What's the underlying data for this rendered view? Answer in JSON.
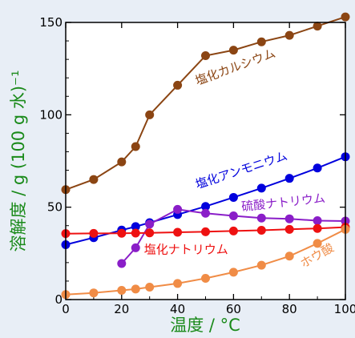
{
  "chart_data": {
    "type": "line",
    "xlabel": "温度 / °C",
    "ylabel": "溶解度 / g (100 g 水)⁻¹",
    "xlim": [
      0,
      100
    ],
    "ylim": [
      0,
      150
    ],
    "x_ticks": [
      0,
      20,
      40,
      60,
      80,
      100
    ],
    "y_ticks": [
      0,
      50,
      100,
      150
    ],
    "grid": false,
    "series": [
      {
        "name": "塩化カルシウム",
        "color": "#8b4513",
        "points": [
          [
            0,
            59.5
          ],
          [
            10,
            65
          ],
          [
            20,
            74.5
          ],
          [
            25,
            82.8
          ],
          [
            30,
            100
          ],
          [
            40,
            116
          ],
          [
            50,
            132
          ],
          [
            60,
            135
          ],
          [
            70,
            139.5
          ],
          [
            80,
            143
          ],
          [
            90,
            148
          ],
          [
            100,
            153
          ]
        ]
      },
      {
        "name": "塩化アンモニウム",
        "color": "#0000dd",
        "points": [
          [
            0,
            29.7
          ],
          [
            10,
            33.5
          ],
          [
            20,
            37.6
          ],
          [
            25,
            39.5
          ],
          [
            30,
            41.6
          ],
          [
            40,
            46
          ],
          [
            50,
            50.4
          ],
          [
            60,
            55.3
          ],
          [
            70,
            60.3
          ],
          [
            80,
            65.6
          ],
          [
            90,
            71.2
          ],
          [
            100,
            77.3
          ]
        ]
      },
      {
        "name": "硫酸ナトリウム",
        "color": "#8a1ec8",
        "points": [
          [
            20,
            19.5
          ],
          [
            25,
            28
          ],
          [
            30,
            40.8
          ],
          [
            40,
            48.8
          ],
          [
            50,
            46.7
          ],
          [
            60,
            45.3
          ],
          [
            70,
            44.1
          ],
          [
            80,
            43.7
          ],
          [
            90,
            42.7
          ],
          [
            100,
            42.5
          ]
        ]
      },
      {
        "name": "塩化ナトリウム",
        "color": "#ee1111",
        "points": [
          [
            0,
            35.7
          ],
          [
            10,
            35.8
          ],
          [
            20,
            35.9
          ],
          [
            25,
            36
          ],
          [
            30,
            36.1
          ],
          [
            40,
            36.4
          ],
          [
            50,
            36.7
          ],
          [
            60,
            37.1
          ],
          [
            70,
            37.5
          ],
          [
            80,
            38
          ],
          [
            90,
            38.5
          ],
          [
            100,
            39.2
          ]
        ]
      },
      {
        "name": "ホウ酸",
        "color": "#f08c46",
        "points": [
          [
            0,
            2.7
          ],
          [
            10,
            3.6
          ],
          [
            20,
            5
          ],
          [
            25,
            5.7
          ],
          [
            30,
            6.7
          ],
          [
            40,
            8.7
          ],
          [
            50,
            11.5
          ],
          [
            60,
            14.8
          ],
          [
            70,
            18.6
          ],
          [
            80,
            23.5
          ],
          [
            90,
            30.4
          ],
          [
            100,
            38
          ]
        ]
      }
    ],
    "series_labels": [
      {
        "series": 0,
        "text": "塩化カルシウム",
        "at": [
          47,
          116
        ],
        "angle": -20
      },
      {
        "series": 1,
        "text": "塩化アンモニウム",
        "at": [
          47,
          60
        ],
        "angle": -18
      },
      {
        "series": 2,
        "text": "硫酸ナトリウム",
        "at": [
          63,
          48
        ],
        "angle": -6
      },
      {
        "series": 3,
        "text": "塩化ナトリウム",
        "at": [
          28,
          25
        ],
        "angle": 0
      },
      {
        "series": 4,
        "text": "ホウ酸",
        "at": [
          85,
          17
        ],
        "angle": -30
      }
    ]
  }
}
